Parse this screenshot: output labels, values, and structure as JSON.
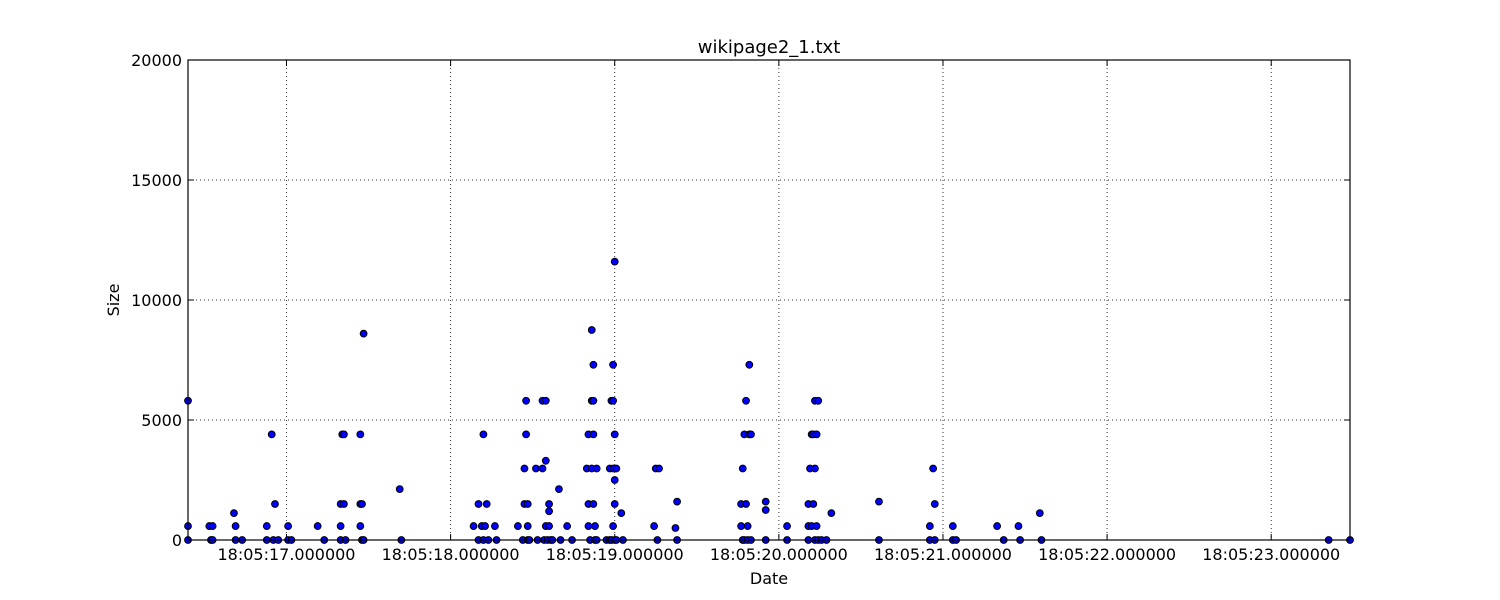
{
  "chart_data": {
    "type": "scatter",
    "title": "wikipage2_1.txt",
    "xlabel": "Date",
    "ylabel": "Size",
    "x_unit": "seconds past 18:05",
    "xlim": [
      16.4,
      23.48
    ],
    "ylim": [
      0,
      20000
    ],
    "xticks": [
      17,
      18,
      19,
      20,
      21,
      22,
      23
    ],
    "xtick_labels": [
      "18:05:17.000000",
      "18:05:18.000000",
      "18:05:19.000000",
      "18:05:20.000000",
      "18:05:21.000000",
      "18:05:22.000000",
      "18:05:23.000000"
    ],
    "yticks": [
      0,
      5000,
      10000,
      15000,
      20000
    ],
    "ytick_labels": [
      "0",
      "5000",
      "10000",
      "15000",
      "20000"
    ],
    "grid": true,
    "marker_color": "#0000ff",
    "points": [
      [
        16.4,
        5800
      ],
      [
        16.4,
        580
      ],
      [
        16.4,
        0
      ],
      [
        16.53,
        580
      ],
      [
        16.54,
        0
      ],
      [
        16.55,
        580
      ],
      [
        16.55,
        0
      ],
      [
        16.68,
        1120
      ],
      [
        16.69,
        580
      ],
      [
        16.69,
        0
      ],
      [
        16.73,
        0
      ],
      [
        16.88,
        580
      ],
      [
        16.88,
        0
      ],
      [
        16.91,
        4400
      ],
      [
        16.92,
        0
      ],
      [
        16.93,
        1500
      ],
      [
        16.95,
        0
      ],
      [
        17.01,
        580
      ],
      [
        17.01,
        0
      ],
      [
        17.03,
        0
      ],
      [
        17.19,
        580
      ],
      [
        17.23,
        0
      ],
      [
        17.33,
        580
      ],
      [
        17.33,
        1500
      ],
      [
        17.33,
        0
      ],
      [
        17.34,
        4400
      ],
      [
        17.35,
        4400
      ],
      [
        17.35,
        1500
      ],
      [
        17.36,
        0
      ],
      [
        17.45,
        4400
      ],
      [
        17.45,
        1500
      ],
      [
        17.45,
        580
      ],
      [
        17.46,
        1500
      ],
      [
        17.46,
        0
      ],
      [
        17.47,
        0
      ],
      [
        17.47,
        8600
      ],
      [
        17.69,
        2120
      ],
      [
        17.7,
        0
      ],
      [
        18.14,
        580
      ],
      [
        18.17,
        1500
      ],
      [
        18.17,
        0
      ],
      [
        18.19,
        580
      ],
      [
        18.2,
        0
      ],
      [
        18.2,
        4400
      ],
      [
        18.21,
        580
      ],
      [
        18.22,
        1500
      ],
      [
        18.23,
        0
      ],
      [
        18.27,
        580
      ],
      [
        18.28,
        0
      ],
      [
        18.41,
        580
      ],
      [
        18.44,
        0
      ],
      [
        18.45,
        2980
      ],
      [
        18.45,
        1500
      ],
      [
        18.46,
        4400
      ],
      [
        18.46,
        5800
      ],
      [
        18.47,
        1500
      ],
      [
        18.47,
        580
      ],
      [
        18.47,
        0
      ],
      [
        18.48,
        0
      ],
      [
        18.52,
        2980
      ],
      [
        18.53,
        0
      ],
      [
        18.56,
        2980
      ],
      [
        18.56,
        5800
      ],
      [
        18.57,
        0
      ],
      [
        18.58,
        3300
      ],
      [
        18.58,
        5800
      ],
      [
        18.58,
        580
      ],
      [
        18.59,
        0
      ],
      [
        18.6,
        1500
      ],
      [
        18.6,
        1200
      ],
      [
        18.6,
        580
      ],
      [
        18.61,
        0
      ],
      [
        18.62,
        0
      ],
      [
        18.66,
        2120
      ],
      [
        18.67,
        0
      ],
      [
        18.71,
        580
      ],
      [
        18.74,
        0
      ],
      [
        18.83,
        2980
      ],
      [
        18.84,
        4400
      ],
      [
        18.84,
        1500
      ],
      [
        18.84,
        580
      ],
      [
        18.85,
        0
      ],
      [
        18.86,
        8750
      ],
      [
        18.86,
        5800
      ],
      [
        18.86,
        2980
      ],
      [
        18.87,
        7300
      ],
      [
        18.87,
        5800
      ],
      [
        18.87,
        4400
      ],
      [
        18.87,
        1500
      ],
      [
        18.88,
        580
      ],
      [
        18.88,
        0
      ],
      [
        18.89,
        2980
      ],
      [
        18.89,
        0
      ],
      [
        18.95,
        0
      ],
      [
        18.97,
        0
      ],
      [
        18.97,
        2980
      ],
      [
        18.98,
        5800
      ],
      [
        18.98,
        0
      ],
      [
        18.99,
        5800
      ],
      [
        18.99,
        7300
      ],
      [
        18.99,
        580
      ],
      [
        18.99,
        2980
      ],
      [
        19.0,
        11600
      ],
      [
        19.0,
        4400
      ],
      [
        19.0,
        2500
      ],
      [
        19.0,
        1500
      ],
      [
        19.0,
        0
      ],
      [
        19.01,
        0
      ],
      [
        19.01,
        2980
      ],
      [
        19.04,
        1120
      ],
      [
        19.05,
        0
      ],
      [
        19.24,
        580
      ],
      [
        19.25,
        2980
      ],
      [
        19.26,
        0
      ],
      [
        19.27,
        2980
      ],
      [
        19.37,
        500
      ],
      [
        19.38,
        1600
      ],
      [
        19.38,
        0
      ],
      [
        19.77,
        1500
      ],
      [
        19.77,
        580
      ],
      [
        19.78,
        0
      ],
      [
        19.78,
        2980
      ],
      [
        19.79,
        4400
      ],
      [
        19.79,
        0
      ],
      [
        19.8,
        1500
      ],
      [
        19.8,
        5800
      ],
      [
        19.81,
        580
      ],
      [
        19.81,
        0
      ],
      [
        19.82,
        4400
      ],
      [
        19.82,
        7300
      ],
      [
        19.83,
        4400
      ],
      [
        19.83,
        0
      ],
      [
        19.92,
        1600
      ],
      [
        19.92,
        1250
      ],
      [
        19.92,
        0
      ],
      [
        20.05,
        580
      ],
      [
        20.05,
        0
      ],
      [
        20.18,
        1500
      ],
      [
        20.18,
        580
      ],
      [
        20.18,
        0
      ],
      [
        20.19,
        2980
      ],
      [
        20.2,
        4400
      ],
      [
        20.2,
        580
      ],
      [
        20.21,
        4400
      ],
      [
        20.21,
        1500
      ],
      [
        20.22,
        5800
      ],
      [
        20.22,
        2980
      ],
      [
        20.22,
        0
      ],
      [
        20.23,
        4400
      ],
      [
        20.23,
        580
      ],
      [
        20.24,
        5800
      ],
      [
        20.24,
        0
      ],
      [
        20.26,
        0
      ],
      [
        20.29,
        0
      ],
      [
        20.32,
        1120
      ],
      [
        20.61,
        1600
      ],
      [
        20.61,
        0
      ],
      [
        20.92,
        580
      ],
      [
        20.92,
        0
      ],
      [
        20.94,
        2980
      ],
      [
        20.95,
        1500
      ],
      [
        20.95,
        0
      ],
      [
        21.06,
        580
      ],
      [
        21.06,
        0
      ],
      [
        21.08,
        0
      ],
      [
        21.33,
        580
      ],
      [
        21.37,
        0
      ],
      [
        21.46,
        580
      ],
      [
        21.47,
        0
      ],
      [
        21.59,
        1120
      ],
      [
        21.6,
        0
      ],
      [
        23.35,
        0
      ],
      [
        23.48,
        0
      ]
    ]
  }
}
